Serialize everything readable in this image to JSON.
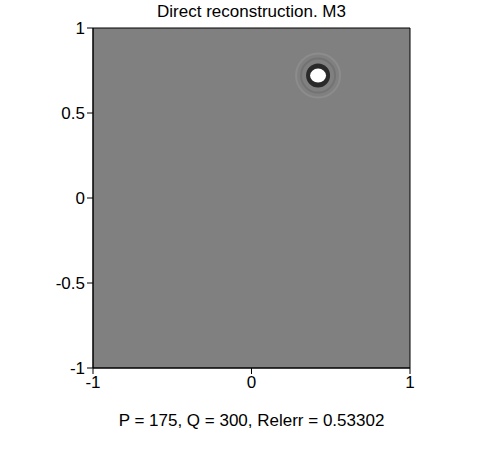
{
  "chart_data": {
    "type": "image",
    "title": "Direct reconstruction. M3",
    "x_label": "P = 175, Q = 300, Relerr = 0.53302",
    "xlim": [
      -1,
      1
    ],
    "ylim": [
      -1,
      1
    ],
    "xticks": [
      -1,
      0,
      1
    ],
    "yticks": [
      -1,
      -0.5,
      0,
      0.5,
      1
    ],
    "background": "#808080",
    "points": {
      "x": [
        0.42
      ],
      "y": [
        0.72
      ],
      "color": "#ffffff"
    }
  }
}
